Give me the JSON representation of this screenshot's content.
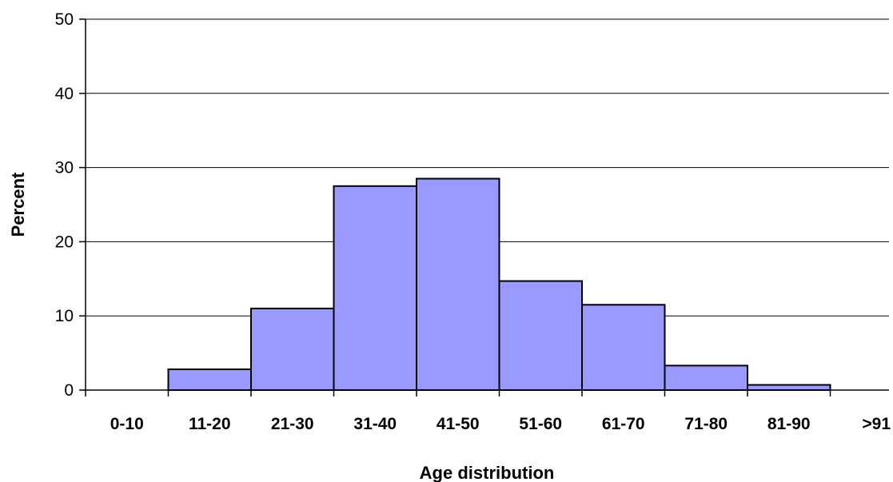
{
  "chart_data": {
    "type": "bar",
    "title": "",
    "xlabel": "Age distribution",
    "ylabel": "Percent",
    "categories": [
      "0-10",
      "11-20",
      "21-30",
      "31-40",
      "41-50",
      "51-60",
      "61-70",
      "71-80",
      "81-90",
      ">91"
    ],
    "values": [
      0,
      2.8,
      11,
      27.5,
      28.5,
      14.7,
      11.5,
      3.3,
      0.7,
      0
    ],
    "ylim": [
      0,
      50
    ],
    "yticks": [
      "0",
      "10",
      "20",
      "30",
      "40",
      "50"
    ],
    "grid": true,
    "legend": "none",
    "bar_color": "#9999ff",
    "bar_edge_color": "#000000"
  }
}
